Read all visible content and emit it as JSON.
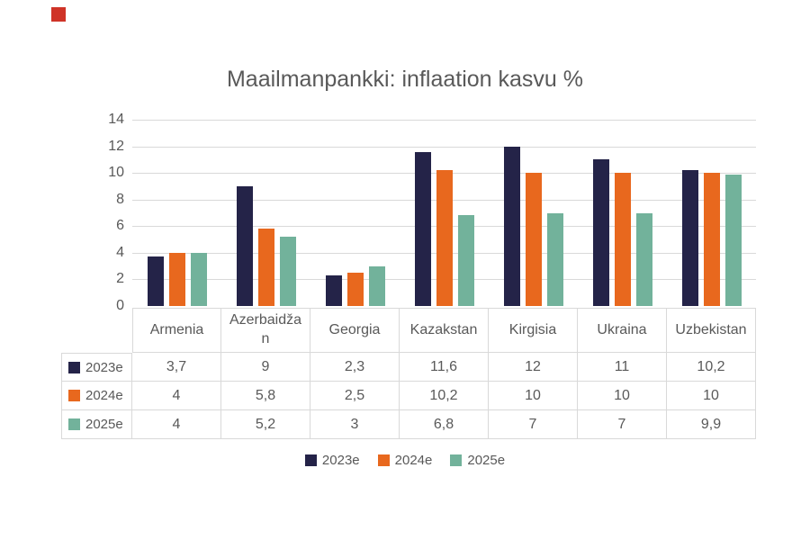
{
  "title": "Maailmanpankki: inflaation kasvu %",
  "chart_data": {
    "type": "bar",
    "title": "Maailmanpankki: inflaation kasvu %",
    "categories": [
      "Armenia",
      "Azerbaidžan",
      "Georgia",
      "Kazakstan",
      "Kirgisia",
      "Ukraina",
      "Uzbekistan"
    ],
    "series": [
      {
        "name": "2023e",
        "color": "#242348",
        "values": [
          3.7,
          9,
          2.3,
          11.6,
          12,
          11,
          10.2
        ]
      },
      {
        "name": "2024e",
        "color": "#E8681E",
        "values": [
          4,
          5.8,
          2.5,
          10.2,
          10,
          10,
          10
        ]
      },
      {
        "name": "2025e",
        "color": "#72B29B",
        "values": [
          4,
          5.2,
          3,
          6.8,
          7,
          7,
          9.9
        ]
      }
    ],
    "ylim": [
      0,
      14
    ],
    "yticks": [
      0,
      2,
      4,
      6,
      8,
      10,
      12,
      14
    ],
    "grid": true,
    "legend_position": "bottom",
    "legend_entries": [
      "2023e",
      "2024e",
      "2025e"
    ],
    "data_table_shown": true,
    "decimal_separator": ","
  },
  "table_values_display": [
    [
      "3,7",
      "9",
      "2,3",
      "11,6",
      "12",
      "11",
      "10,2"
    ],
    [
      "4",
      "5,8",
      "2,5",
      "10,2",
      "10",
      "10",
      "10"
    ],
    [
      "4",
      "5,2",
      "3",
      "6,8",
      "7",
      "7",
      "9,9"
    ]
  ],
  "colors": {
    "text": "#595959",
    "gridline": "#D9D9D9",
    "table_border": "#D9D9D9",
    "red_marker": "#CF3327",
    "background": "#FFFFFF"
  }
}
